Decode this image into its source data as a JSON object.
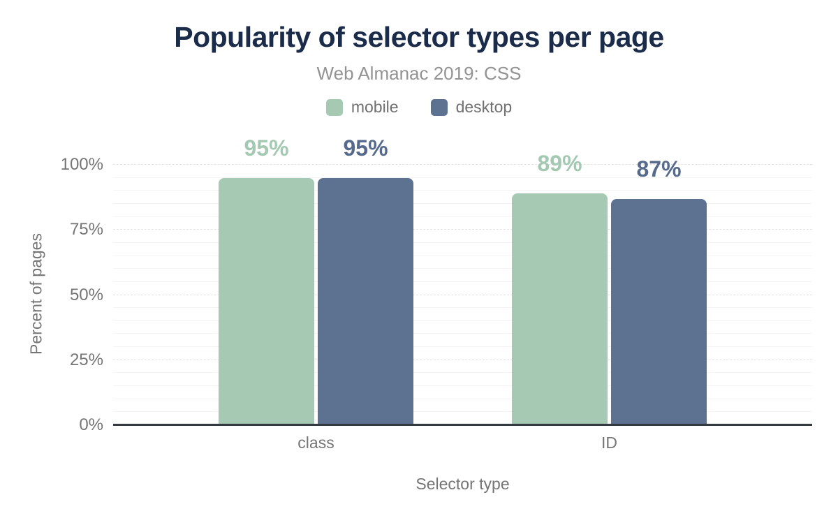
{
  "chart_data": {
    "type": "bar",
    "title": "Popularity of selector types per page",
    "subtitle": "Web Almanac 2019: CSS",
    "xlabel": "Selector type",
    "ylabel": "Percent of pages",
    "categories": [
      "class",
      "ID"
    ],
    "series": [
      {
        "name": "mobile",
        "values": [
          95,
          89
        ],
        "labels": [
          "95%",
          "89%"
        ],
        "color": "#a6c9b4",
        "label_color": "#a4c9b2"
      },
      {
        "name": "desktop",
        "values": [
          95,
          87
        ],
        "labels": [
          "95%",
          "87%"
        ],
        "color": "#5d7190",
        "label_color": "#556a8d"
      }
    ],
    "ylim": [
      0,
      100
    ],
    "yticks": [
      {
        "value": 0,
        "label": "0%"
      },
      {
        "value": 25,
        "label": "25%"
      },
      {
        "value": 50,
        "label": "50%"
      },
      {
        "value": 75,
        "label": "75%"
      },
      {
        "value": 100,
        "label": "100%"
      }
    ],
    "grid": {
      "visible": true,
      "minor_step_percent": 5,
      "major_step_percent": 25
    },
    "legend_position": "top"
  },
  "colors": {
    "background": "#ffffff",
    "title": "#1b2b4a",
    "subtitle": "#939393",
    "axis_text": "#757575",
    "legend_text": "#6f6f6f",
    "baseline": "#343a42",
    "grid_minor": "#f4f4f4",
    "grid_major": "#e2e2e2",
    "series_mobile": "#a6c9b4",
    "series_desktop": "#5d7190"
  }
}
